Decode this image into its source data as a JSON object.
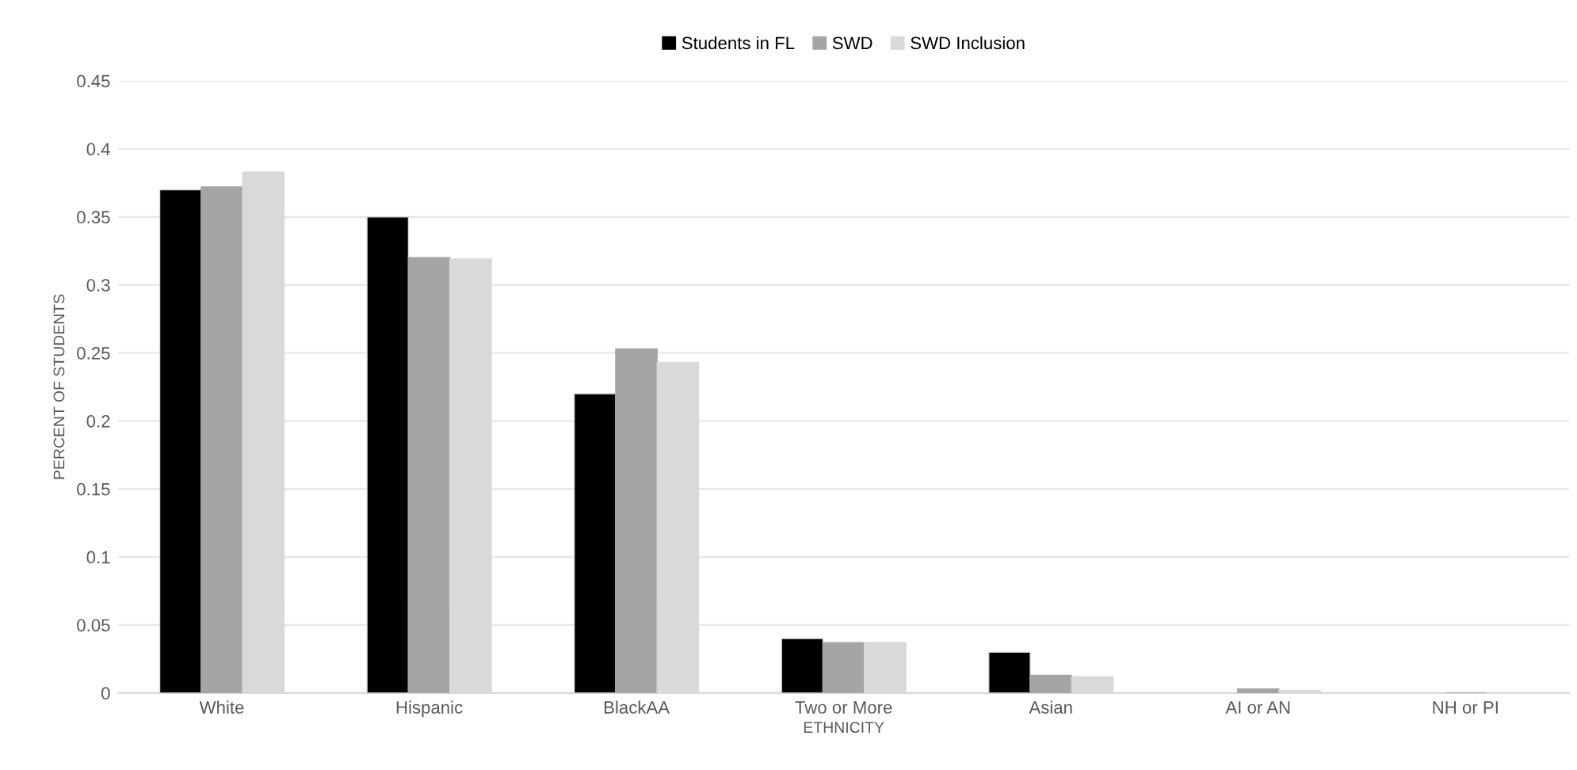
{
  "chart_data": {
    "type": "bar",
    "xlabel": "ETHNICITY",
    "ylabel": "PERCENT OF STUDENTS",
    "categories": [
      "White",
      "Hispanic",
      "BlackAA",
      "Two or More",
      "Asian",
      "AI or AN",
      "NH or PI"
    ],
    "series": [
      {
        "name": "Students in FL",
        "color": "#000000",
        "values": [
          0.37,
          0.35,
          0.22,
          0.04,
          0.03,
          null,
          null
        ]
      },
      {
        "name": "SWD",
        "color": "#a5a5a5",
        "values": [
          0.372,
          0.32,
          0.253,
          0.037,
          0.013,
          0.003,
          null
        ]
      },
      {
        "name": "SWD Inclusion",
        "color": "#d9d9d9",
        "values": [
          0.383,
          0.319,
          0.243,
          0.037,
          0.012,
          0.002,
          null
        ]
      }
    ],
    "ylim": [
      0,
      0.45
    ],
    "yticks": [
      0,
      0.05,
      0.1,
      0.15,
      0.2,
      0.25,
      0.3,
      0.35,
      0.4,
      0.45
    ],
    "grid": "y",
    "legend": "top"
  }
}
